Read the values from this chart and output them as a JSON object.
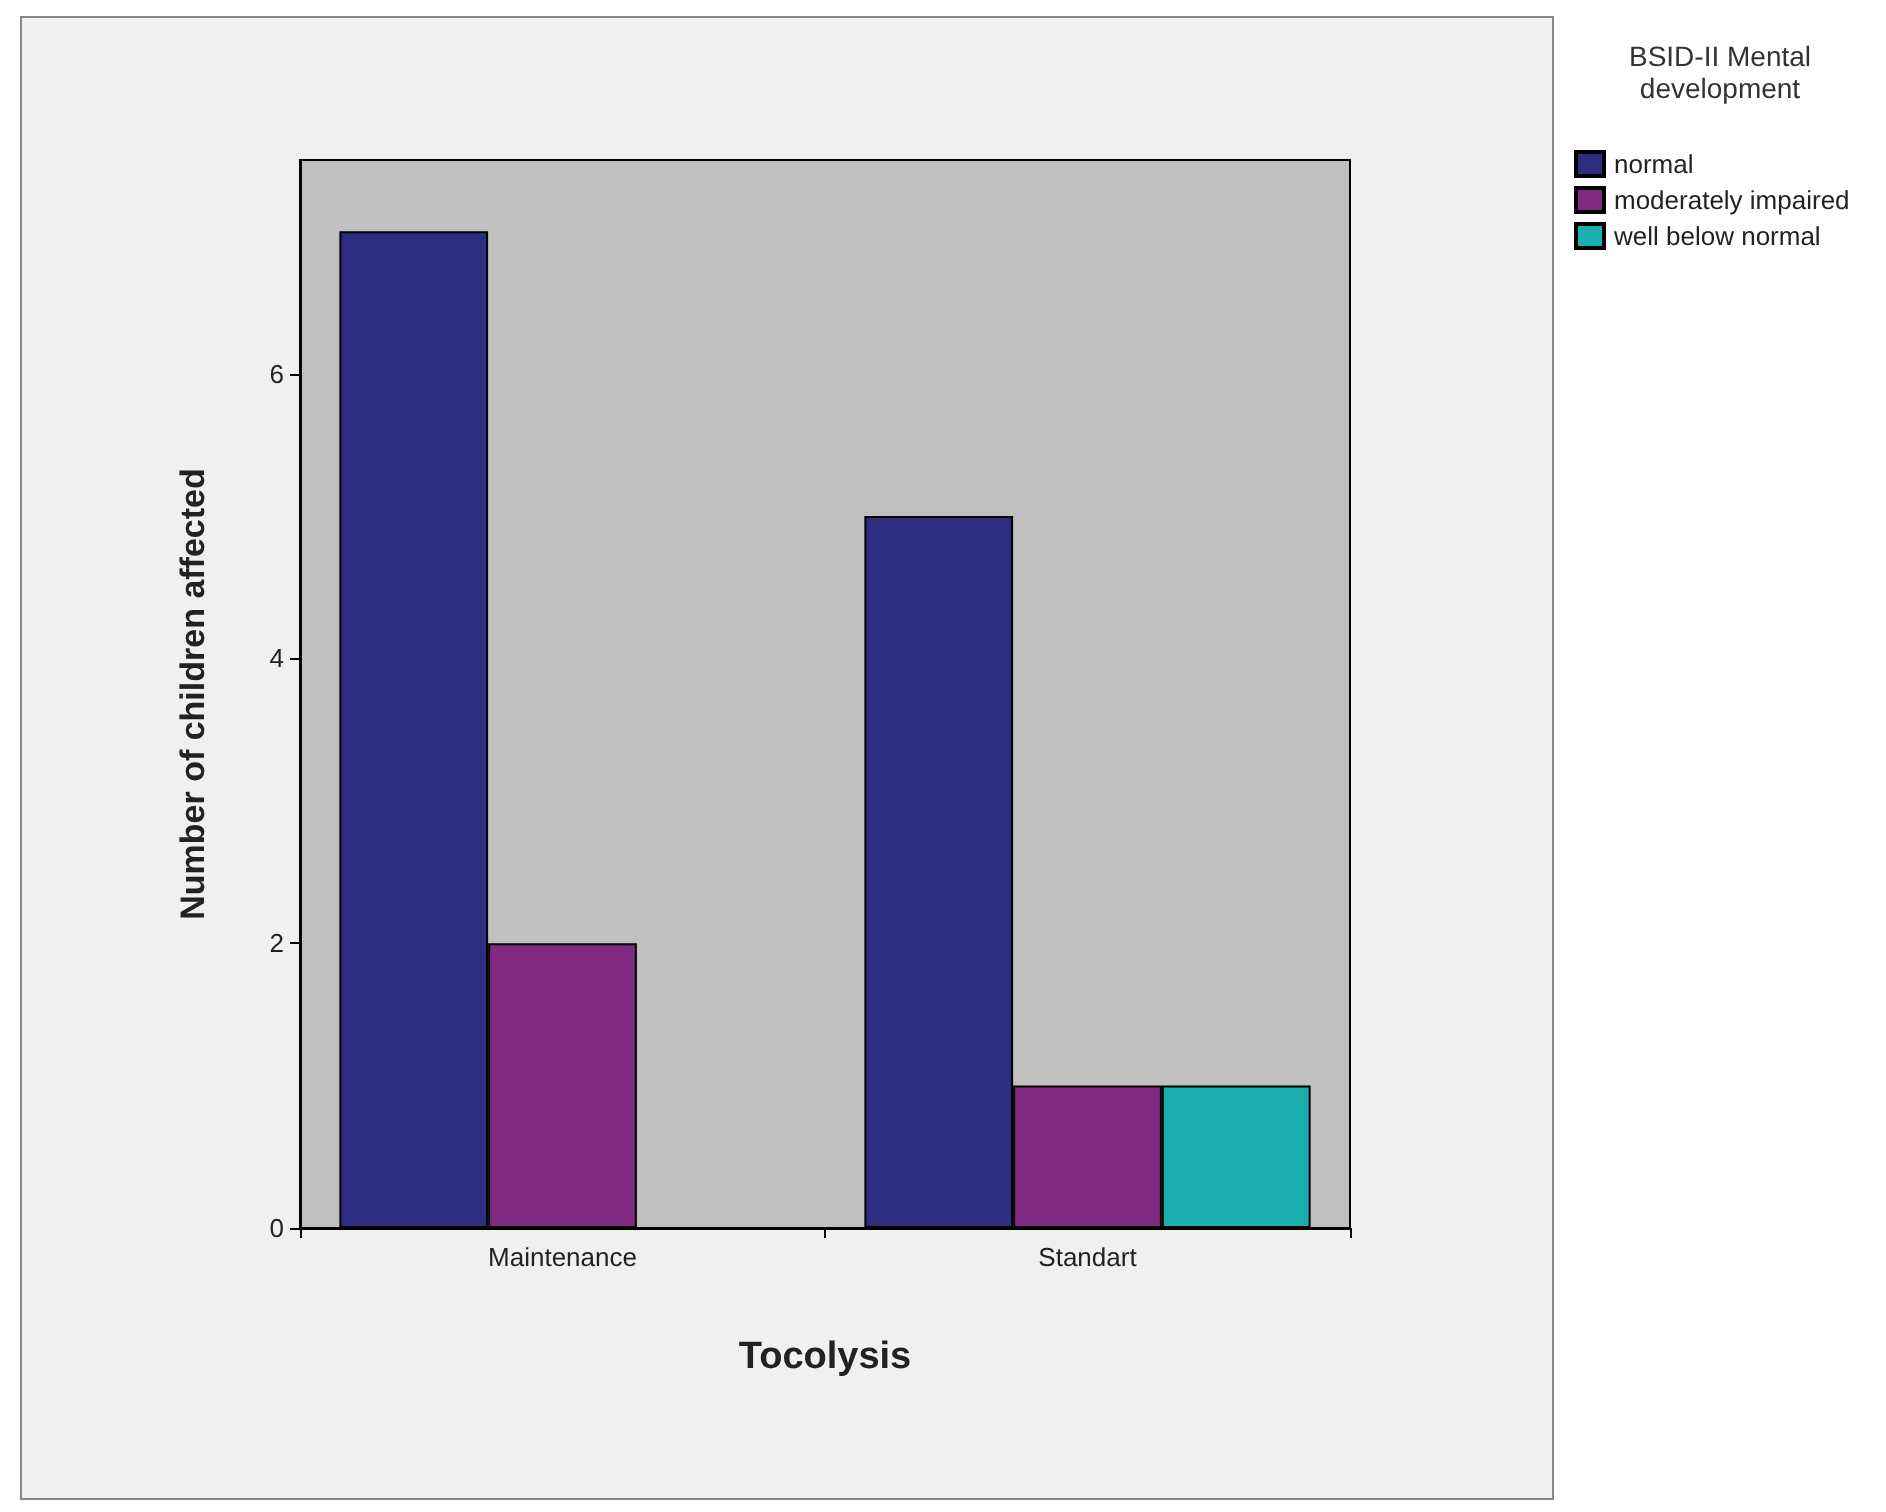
{
  "chart_data": {
    "type": "bar",
    "xlabel": "Tocolysis",
    "ylabel": "Number of children affected",
    "legend_title": "BSID-II Mental development",
    "categories": [
      "Maintenance",
      "Standart"
    ],
    "series": [
      {
        "name": "normal",
        "color": "#2c2c80",
        "values": [
          7,
          5
        ]
      },
      {
        "name": "moderately impaired",
        "color": "#7f2a80",
        "values": [
          2,
          1
        ]
      },
      {
        "name": "well below normal",
        "color": "#1aafae",
        "values": [
          null,
          1
        ]
      }
    ],
    "ylim": [
      0,
      7.5
    ],
    "yticks": [
      0,
      2,
      4,
      6
    ],
    "grid": false,
    "legend": "top right"
  }
}
